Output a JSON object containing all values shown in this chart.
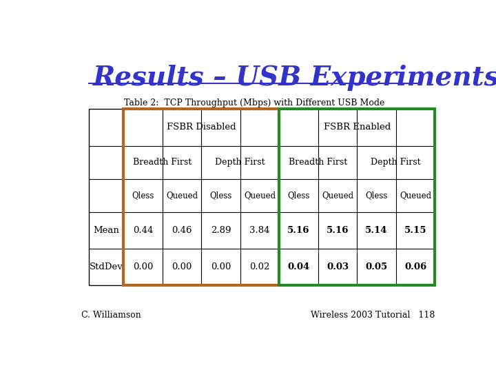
{
  "title": "Results – USB Experiments",
  "title_color": "#3333cc",
  "title_fontsize": 28,
  "table_title": "Table 2:  TCP Throughput (Mbps) with Different USB Mode",
  "col_headers_l1": [
    "FSBR Disabled",
    "FSBR Enabled"
  ],
  "col_headers_l2": [
    "Breadth First",
    "Depth First",
    "Breadth First",
    "Depth First"
  ],
  "col_headers_l3": [
    "Qless",
    "Queued",
    "Qless",
    "Queued",
    "Qless",
    "Queued",
    "Qless",
    "Queued"
  ],
  "row_labels": [
    "Mean",
    "StdDev"
  ],
  "data_mean": [
    "0.44",
    "0.46",
    "2.89",
    "3.84",
    "5.16",
    "5.16",
    "5.14",
    "5.15"
  ],
  "data_stddev": [
    "0.00",
    "0.00",
    "0.00",
    "0.02",
    "0.04",
    "0.03",
    "0.05",
    "0.06"
  ],
  "disabled_color": "#b5651d",
  "enabled_color": "#228B22",
  "footer_left": "C. Williamson",
  "footer_right": "Wireless 2003 Tutorial   118",
  "background_color": "#ffffff"
}
